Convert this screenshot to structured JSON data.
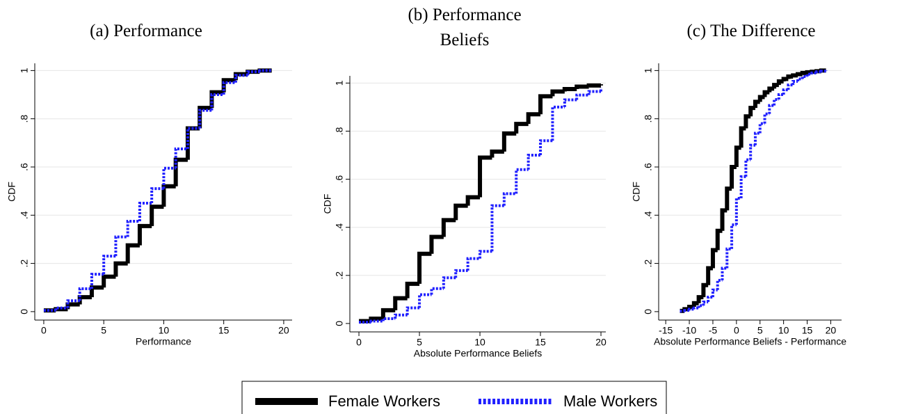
{
  "chart_data": [
    {
      "type": "line",
      "step": true,
      "title": "(a) Performance",
      "xlabel": "Performance",
      "ylabel": "CDF",
      "x": [
        0,
        1,
        2,
        3,
        4,
        5,
        6,
        7,
        8,
        9,
        10,
        11,
        12,
        13,
        14,
        15,
        16,
        17,
        18,
        19
      ],
      "series": [
        {
          "name": "Female Workers",
          "color": "#000000",
          "values": [
            0.005,
            0.01,
            0.03,
            0.06,
            0.1,
            0.145,
            0.2,
            0.275,
            0.355,
            0.435,
            0.52,
            0.63,
            0.76,
            0.845,
            0.91,
            0.96,
            0.985,
            0.995,
            1,
            1
          ]
        },
        {
          "name": "Male Workers",
          "color": "#1f1fff",
          "values": [
            0.005,
            0.015,
            0.045,
            0.095,
            0.155,
            0.23,
            0.31,
            0.375,
            0.45,
            0.51,
            0.595,
            0.675,
            0.76,
            0.835,
            0.9,
            0.95,
            0.98,
            0.995,
            1,
            1
          ]
        }
      ],
      "xlim": [
        -0.75,
        20.7
      ],
      "xticks": [
        0,
        5,
        10,
        15,
        20
      ],
      "ylim": [
        -0.035,
        1.03
      ],
      "yticks": [
        0,
        {
          "value": 0.2,
          "label": ".2"
        },
        {
          "value": 0.4,
          "label": ".4"
        },
        {
          "value": 0.6,
          "label": ".6"
        },
        {
          "value": 0.8,
          "label": ".8"
        },
        1
      ],
      "grid": true
    },
    {
      "type": "line",
      "step": true,
      "title": "(b) Performance Beliefs",
      "xlabel": "Absolute Performance Beliefs",
      "ylabel": "CDF",
      "x": [
        0,
        1,
        2,
        3,
        4,
        5,
        6,
        7,
        8,
        9,
        10,
        11,
        12,
        13,
        14,
        15,
        16,
        17,
        18,
        19,
        20
      ],
      "series": [
        {
          "name": "Female Workers",
          "color": "#000000",
          "values": [
            0.01,
            0.02,
            0.055,
            0.105,
            0.165,
            0.29,
            0.36,
            0.43,
            0.49,
            0.525,
            0.69,
            0.715,
            0.79,
            0.83,
            0.87,
            0.945,
            0.965,
            0.975,
            0.985,
            0.99,
            0.995
          ]
        },
        {
          "name": "Male Workers",
          "color": "#1f1fff",
          "values": [
            0.005,
            0.01,
            0.02,
            0.035,
            0.065,
            0.12,
            0.145,
            0.19,
            0.22,
            0.27,
            0.3,
            0.49,
            0.54,
            0.64,
            0.7,
            0.76,
            0.9,
            0.93,
            0.95,
            0.965,
            0.98
          ]
        }
      ],
      "xlim": [
        -0.75,
        20.4
      ],
      "xticks": [
        0,
        5,
        10,
        15,
        20
      ],
      "ylim": [
        -0.035,
        1.03
      ],
      "yticks": [
        0,
        {
          "value": 0.2,
          "label": ".2"
        },
        {
          "value": 0.4,
          "label": ".4"
        },
        {
          "value": 0.6,
          "label": ".6"
        },
        {
          "value": 0.8,
          "label": ".8"
        },
        1
      ],
      "grid": true
    },
    {
      "type": "line",
      "step": true,
      "title": "(c) The Difference",
      "xlabel": "Absolute Performance Beliefs - Performance",
      "ylabel": "CDF",
      "x": [
        -12,
        -11,
        -10,
        -9,
        -8,
        -7,
        -6,
        -5,
        -4,
        -3,
        -2,
        -1,
        0,
        1,
        2,
        3,
        4,
        5,
        6,
        7,
        8,
        9,
        10,
        11,
        12,
        13,
        14,
        15,
        16,
        17,
        18,
        19
      ],
      "series": [
        {
          "name": "Female Workers",
          "color": "#000000",
          "values": [
            0.003,
            0.01,
            0.02,
            0.035,
            0.06,
            0.11,
            0.18,
            0.255,
            0.335,
            0.42,
            0.51,
            0.6,
            0.68,
            0.76,
            0.81,
            0.845,
            0.87,
            0.89,
            0.91,
            0.925,
            0.94,
            0.955,
            0.965,
            0.975,
            0.98,
            0.985,
            0.99,
            0.993,
            0.995,
            0.997,
            1,
            1
          ]
        },
        {
          "name": "Male Workers",
          "color": "#1f1fff",
          "values": [
            0.002,
            0.005,
            0.01,
            0.015,
            0.025,
            0.04,
            0.06,
            0.09,
            0.13,
            0.18,
            0.26,
            0.36,
            0.47,
            0.56,
            0.63,
            0.69,
            0.74,
            0.78,
            0.82,
            0.855,
            0.88,
            0.9,
            0.92,
            0.94,
            0.955,
            0.965,
            0.975,
            0.985,
            0.99,
            0.995,
            0.998,
            1
          ]
        }
      ],
      "xlim": [
        -16.5,
        22.3
      ],
      "xticks": [
        -15,
        -10,
        -5,
        0,
        5,
        10,
        15,
        20
      ],
      "ylim": [
        -0.035,
        1.03
      ],
      "yticks": [
        0,
        {
          "value": 0.2,
          "label": ".2"
        },
        {
          "value": 0.4,
          "label": ".4"
        },
        {
          "value": 0.6,
          "label": ".6"
        },
        {
          "value": 0.8,
          "label": ".8"
        },
        1
      ],
      "grid": true
    }
  ]
}
